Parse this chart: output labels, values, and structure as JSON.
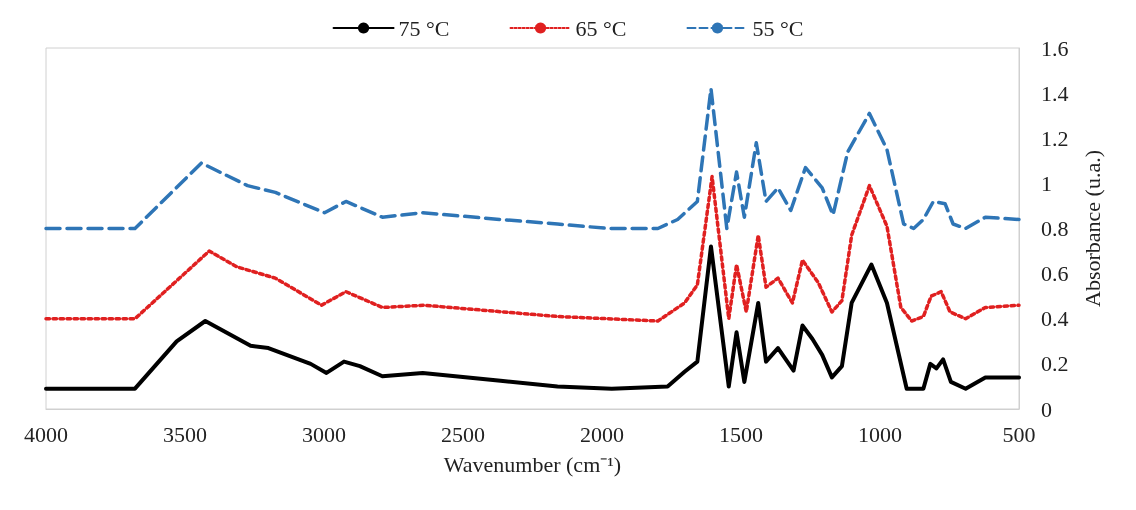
{
  "chart_data": {
    "type": "line",
    "xlabel": "Wavenumber (cm⁻¹)",
    "ylabel": "Absorbance (u.a.)",
    "xlim": [
      4000,
      500
    ],
    "xticks": [
      4000,
      3500,
      3000,
      2500,
      2000,
      1500,
      1000,
      500
    ],
    "ylim": [
      0,
      1.6
    ],
    "yticks": [
      0,
      0.2,
      0.4,
      0.6,
      0.8,
      1,
      1.2,
      1.4,
      1.6
    ],
    "grid": false,
    "legend": "top",
    "marker": "none",
    "series": [
      {
        "name": "75 °C",
        "color": "#000000",
        "line_style": "solid",
        "x": [
          4000,
          3680,
          3530,
          3427,
          3264,
          3200,
          3048,
          2991,
          2928,
          2871,
          2790,
          2645,
          2365,
          2160,
          1965,
          1764,
          1703,
          1657,
          1608,
          1544,
          1516,
          1488,
          1438,
          1410,
          1367,
          1311,
          1279,
          1243,
          1208,
          1173,
          1137,
          1102,
          1031,
          975,
          904,
          844,
          819,
          797,
          773,
          745,
          692,
          621,
          500
        ],
        "values": [
          0.09,
          0.09,
          0.3,
          0.39,
          0.28,
          0.27,
          0.2,
          0.16,
          0.21,
          0.19,
          0.145,
          0.16,
          0.125,
          0.1,
          0.09,
          0.1,
          0.165,
          0.21,
          0.72,
          0.1,
          0.34,
          0.12,
          0.47,
          0.21,
          0.27,
          0.17,
          0.37,
          0.31,
          0.24,
          0.14,
          0.19,
          0.47,
          0.64,
          0.47,
          0.09,
          0.09,
          0.2,
          0.18,
          0.22,
          0.12,
          0.09,
          0.14,
          0.14
        ]
      },
      {
        "name": "65 °C",
        "color": "#e02020",
        "line_style": "dotted",
        "x": [
          4000,
          3680,
          3413,
          3313,
          3175,
          3009,
          2921,
          2790,
          2640,
          2160,
          1799,
          1703,
          1657,
          1604,
          1544,
          1516,
          1481,
          1438,
          1410,
          1367,
          1315,
          1279,
          1222,
          1173,
          1137,
          1102,
          1038,
          975,
          925,
          886,
          844,
          816,
          780,
          748,
          692,
          621,
          500
        ],
        "values": [
          0.4,
          0.4,
          0.7,
          0.63,
          0.58,
          0.46,
          0.52,
          0.45,
          0.46,
          0.41,
          0.39,
          0.47,
          0.55,
          1.03,
          0.4,
          0.64,
          0.43,
          0.77,
          0.54,
          0.58,
          0.47,
          0.66,
          0.56,
          0.43,
          0.48,
          0.77,
          0.99,
          0.81,
          0.45,
          0.39,
          0.41,
          0.5,
          0.52,
          0.43,
          0.4,
          0.45,
          0.46
        ]
      },
      {
        "name": "55 °C",
        "color": "#2e75b6",
        "line_style": "dashed",
        "x": [
          4000,
          3680,
          3441,
          3275,
          3175,
          2998,
          2921,
          2790,
          2645,
          2365,
          2160,
          1976,
          1799,
          1728,
          1657,
          1608,
          1551,
          1516,
          1488,
          1445,
          1410,
          1367,
          1321,
          1268,
          1208,
          1169,
          1116,
          1038,
          975,
          915,
          879,
          844,
          808,
          766,
          737,
          692,
          621,
          500
        ],
        "values": [
          0.8,
          0.8,
          1.09,
          0.99,
          0.96,
          0.87,
          0.92,
          0.85,
          0.87,
          0.84,
          0.82,
          0.8,
          0.8,
          0.84,
          0.92,
          1.42,
          0.8,
          1.05,
          0.85,
          1.18,
          0.92,
          0.98,
          0.88,
          1.07,
          0.98,
          0.86,
          1.14,
          1.31,
          1.15,
          0.82,
          0.8,
          0.84,
          0.92,
          0.91,
          0.82,
          0.8,
          0.85,
          0.84
        ]
      }
    ]
  }
}
